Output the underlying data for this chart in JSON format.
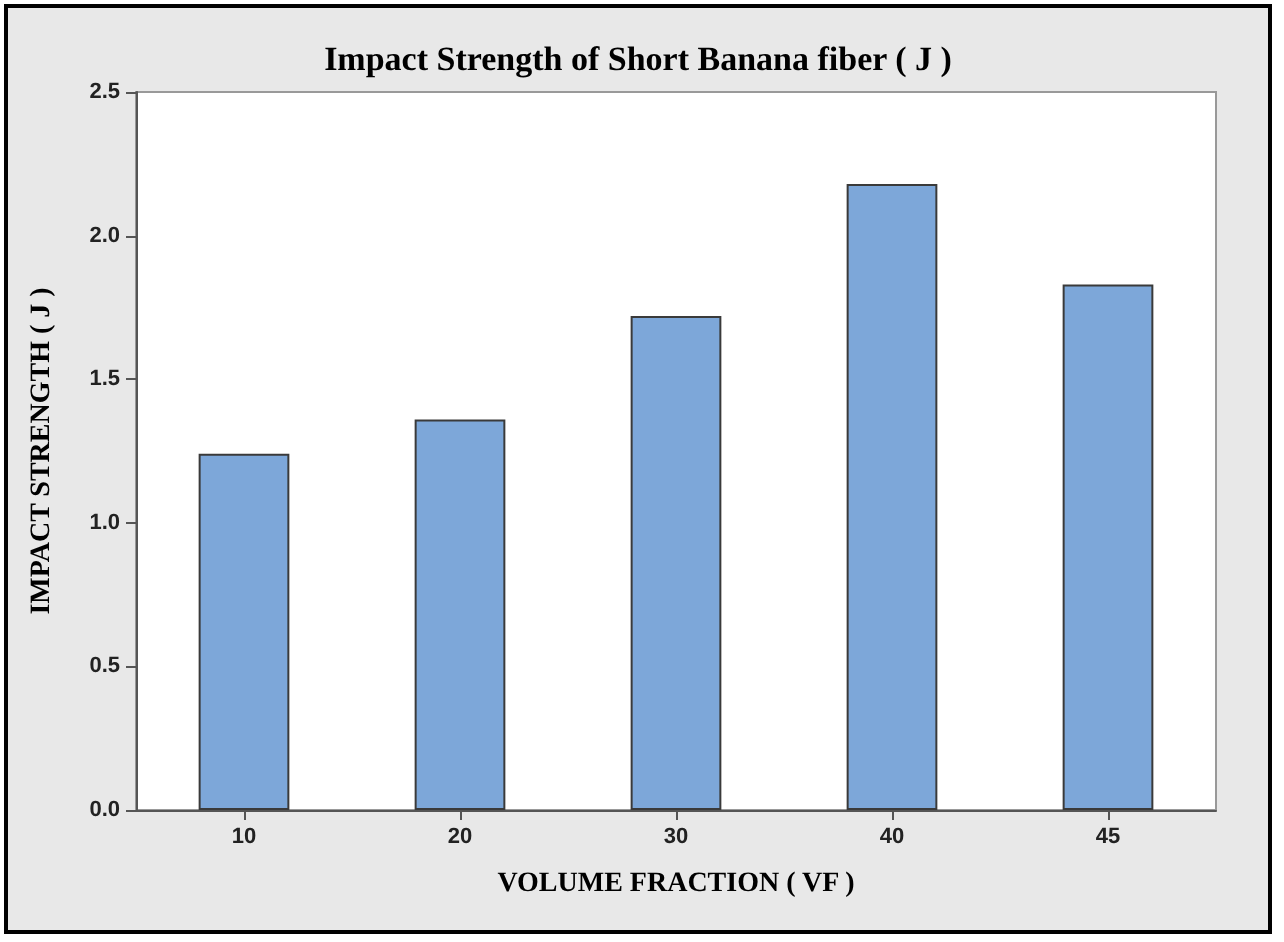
{
  "chart_data": {
    "type": "bar",
    "title": "Impact Strength of Short Banana fiber ( J )",
    "xlabel": "VOLUME FRACTION ( VF )",
    "ylabel": "IMPACT STRENGTH ( J )",
    "categories": [
      "10",
      "20",
      "30",
      "40",
      "45"
    ],
    "values": [
      1.24,
      1.36,
      1.72,
      2.18,
      1.83
    ],
    "color": "#7da7d9",
    "ylim": [
      0,
      2.5
    ],
    "yticks": [
      {
        "value": 0,
        "label": "0.0"
      },
      {
        "value": 0.5,
        "label": "0.5"
      },
      {
        "value": 1,
        "label": "1.0"
      },
      {
        "value": 1.5,
        "label": "1.5"
      },
      {
        "value": 2,
        "label": "2.0"
      },
      {
        "value": 2.5,
        "label": "2.5"
      }
    ],
    "grid": false
  }
}
